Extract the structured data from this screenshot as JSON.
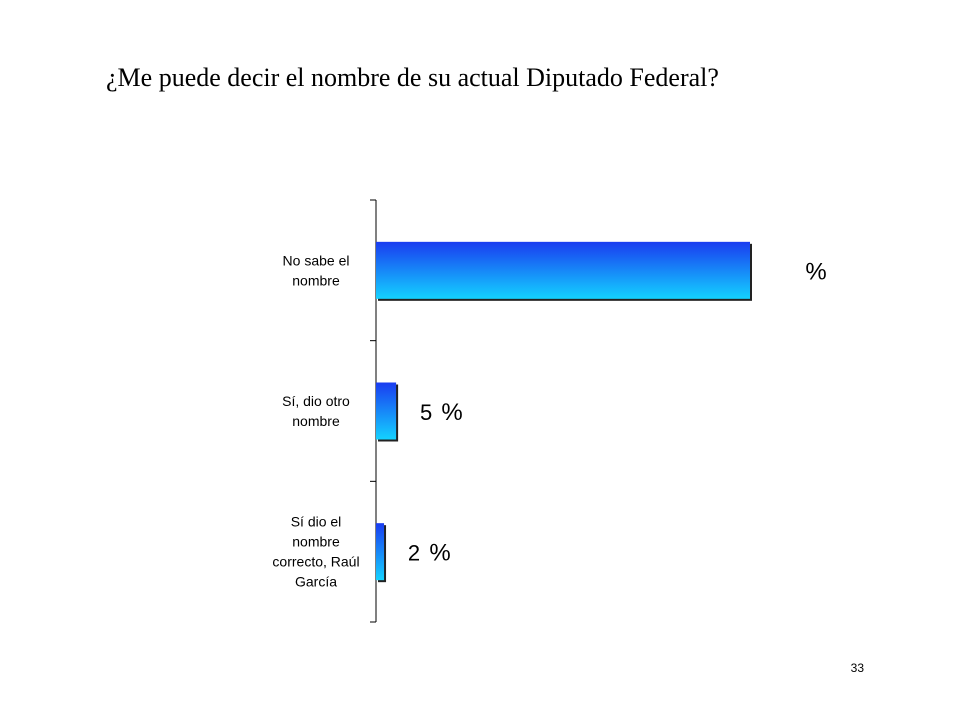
{
  "slide": {
    "title": "¿Me puede decir el nombre de su actual Diputado Federal?",
    "page_number": "33"
  },
  "colors": {
    "bar_top": "#1a3cf0",
    "bar_bottom": "#14d2ff",
    "axis": "#000000"
  },
  "chart_data": {
    "type": "bar",
    "orientation": "horizontal",
    "categories": [
      [
        "No sabe el",
        "nombre"
      ],
      [
        "Sí, dio otro",
        "nombre"
      ],
      [
        "Sí dio el",
        "nombre",
        "correcto, Raúl",
        "García"
      ]
    ],
    "values": [
      93,
      5,
      2
    ],
    "value_labels": [
      "",
      "5",
      "2"
    ],
    "unit": "%",
    "xlim": [
      0,
      93
    ]
  }
}
